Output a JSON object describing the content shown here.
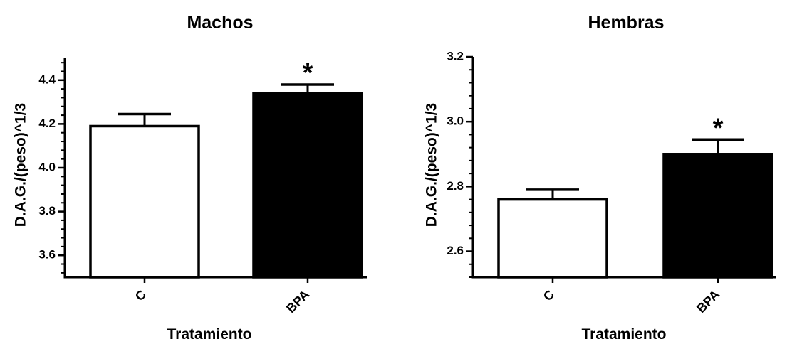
{
  "chart_data": [
    {
      "type": "bar",
      "title": "Machos",
      "xlabel": "Tratamiento",
      "ylabel": "D.A.G./(peso)^1/3",
      "categories": [
        "C",
        "BPA"
      ],
      "values": [
        4.19,
        4.34
      ],
      "error": [
        0.055,
        0.04
      ],
      "bar_colors": [
        "#ffffff",
        "#000000"
      ],
      "significance": [
        "",
        "*"
      ],
      "ylim": [
        3.5,
        4.5
      ],
      "yticks": [
        3.6,
        3.8,
        4.0,
        4.2,
        4.4
      ],
      "ytick_labels": [
        "3.6",
        "3.8",
        "4.0",
        "4.2",
        "4.4"
      ],
      "minor_ticks_per_major": 5,
      "grid": false,
      "legend": "none"
    },
    {
      "type": "bar",
      "title": "Hembras",
      "xlabel": "Tratamiento",
      "ylabel": "D.A.G./(peso)^1/3",
      "categories": [
        "C",
        "BPA"
      ],
      "values": [
        2.76,
        2.9
      ],
      "error": [
        0.03,
        0.045
      ],
      "bar_colors": [
        "#ffffff",
        "#000000"
      ],
      "significance": [
        "",
        "*"
      ],
      "ylim": [
        2.52,
        3.2
      ],
      "yticks": [
        2.6,
        2.8,
        3.0,
        3.2
      ],
      "ytick_labels": [
        "2.6",
        "2.8",
        "3.0",
        "3.2"
      ],
      "minor_ticks_per_major": 5,
      "grid": false,
      "legend": "none"
    }
  ]
}
